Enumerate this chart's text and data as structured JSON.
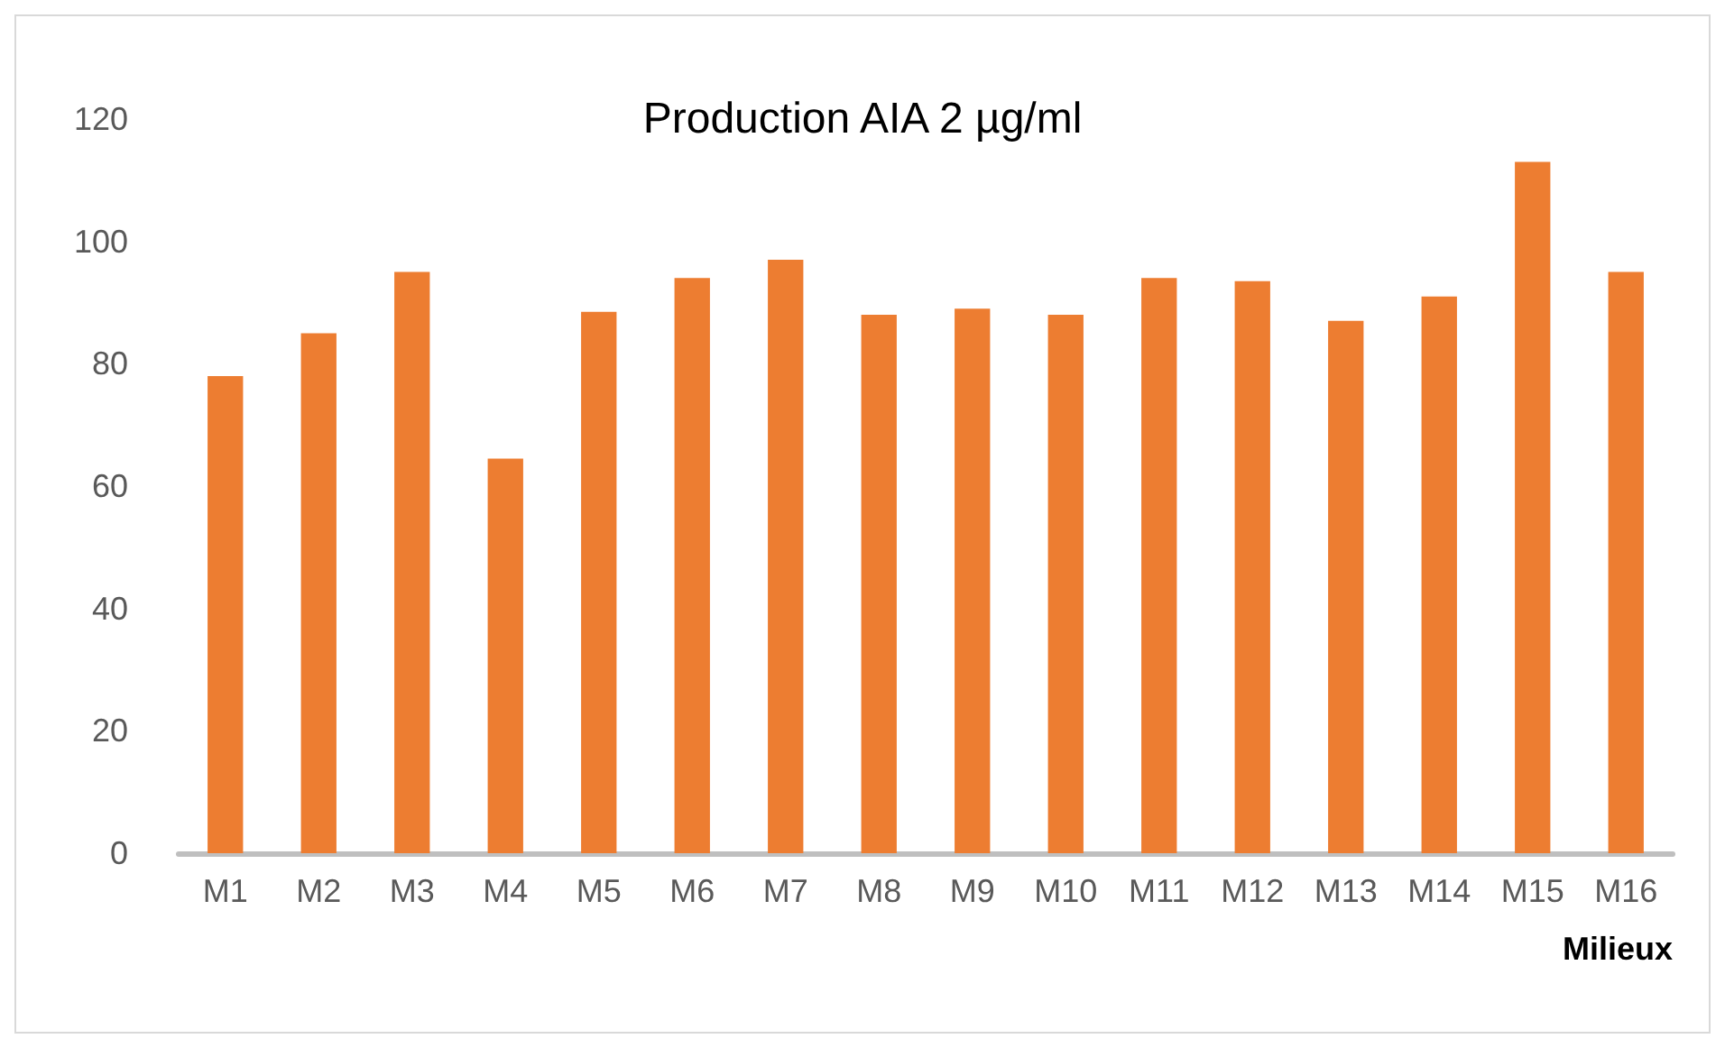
{
  "chart_data": {
    "type": "bar",
    "title": "Production AIA 2 µg/ml",
    "xlabel": "Milieux",
    "categories": [
      "M1",
      "M2",
      "M3",
      "M4",
      "M5",
      "M6",
      "M7",
      "M8",
      "M9",
      "M10",
      "M11",
      "M12",
      "M13",
      "M14",
      "M15",
      "M16"
    ],
    "values": [
      78,
      85,
      95,
      64.5,
      88.5,
      94,
      97,
      88,
      89,
      88,
      94,
      93.5,
      87,
      91,
      113,
      95
    ],
    "color": "#ed7d31",
    "ylim": [
      0,
      120
    ],
    "yticks": [
      0,
      20,
      40,
      60,
      80,
      100,
      120
    ],
    "grid": false
  }
}
